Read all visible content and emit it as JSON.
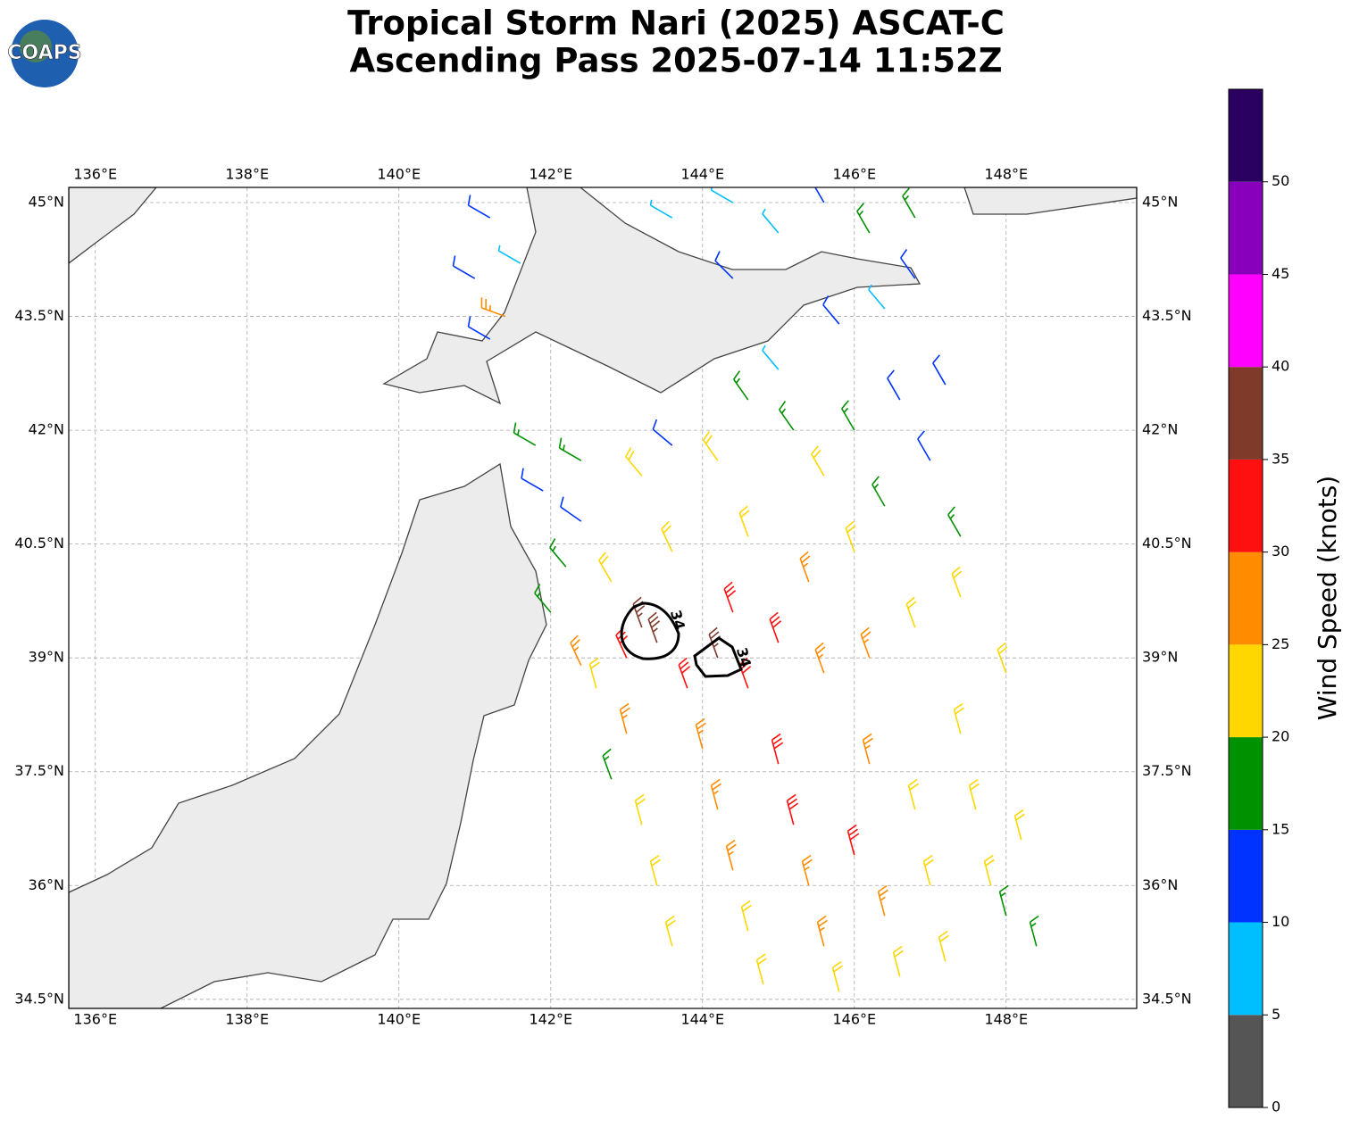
{
  "header": {
    "title": [
      "Tropical Storm Nari (2025) ASCAT-C",
      "Ascending Pass 2025-07-14 11:52Z"
    ]
  },
  "logo": "COAPS",
  "map": {
    "type": "wind-barbs",
    "xlim": [
      135.65,
      149.72
    ],
    "ylim": [
      34.38,
      45.2
    ],
    "xticks": [
      {
        "value": 136,
        "label": "136°E"
      },
      {
        "value": 138,
        "label": "138°E"
      },
      {
        "value": 140,
        "label": "140°E"
      },
      {
        "value": 142,
        "label": "142°E"
      },
      {
        "value": 144,
        "label": "144°E"
      },
      {
        "value": 146,
        "label": "146°E"
      },
      {
        "value": 148,
        "label": "148°E"
      }
    ],
    "yticks": [
      {
        "value": 34.5,
        "label": "34.5°N"
      },
      {
        "value": 36,
        "label": "36°N"
      },
      {
        "value": 37.5,
        "label": "37.5°N"
      },
      {
        "value": 39,
        "label": "39°N"
      },
      {
        "value": 40.5,
        "label": "40.5°N"
      },
      {
        "value": 42,
        "label": "42°N"
      },
      {
        "value": 43.5,
        "label": "43.5°N"
      },
      {
        "value": 45,
        "label": "45°N"
      }
    ],
    "grid": true,
    "contour_labels": [
      "34",
      "34"
    ],
    "barbs": [
      [
        142.6,
        38.6,
        24,
        345
      ],
      [
        143.0,
        38.0,
        27,
        345
      ],
      [
        142.8,
        37.4,
        19,
        340
      ],
      [
        143.2,
        36.8,
        22,
        345
      ],
      [
        143.4,
        36.0,
        24,
        345
      ],
      [
        143.6,
        35.2,
        22,
        345
      ],
      [
        144.0,
        37.8,
        28,
        345
      ],
      [
        144.2,
        37.0,
        27,
        345
      ],
      [
        144.4,
        36.2,
        26,
        345
      ],
      [
        144.6,
        35.4,
        24,
        345
      ],
      [
        144.8,
        34.7,
        23,
        345
      ],
      [
        145.0,
        37.6,
        32,
        345
      ],
      [
        145.2,
        36.8,
        31,
        345
      ],
      [
        145.4,
        36.0,
        27,
        345
      ],
      [
        145.6,
        35.2,
        26,
        345
      ],
      [
        145.8,
        34.6,
        24,
        345
      ],
      [
        146.0,
        36.4,
        31,
        345
      ],
      [
        146.2,
        37.6,
        27,
        345
      ],
      [
        146.4,
        35.6,
        26,
        345
      ],
      [
        146.6,
        34.8,
        23,
        345
      ],
      [
        146.8,
        37.0,
        24,
        345
      ],
      [
        147.0,
        36.0,
        23,
        345
      ],
      [
        147.2,
        35.0,
        21,
        345
      ],
      [
        147.4,
        38.0,
        23,
        345
      ],
      [
        147.6,
        37.0,
        22,
        345
      ],
      [
        147.8,
        36.0,
        21,
        345
      ],
      [
        148.0,
        35.6,
        17,
        345
      ],
      [
        148.4,
        35.2,
        16,
        345
      ],
      [
        148.2,
        36.6,
        22,
        345
      ],
      [
        143.4,
        39.2,
        36,
        340
      ],
      [
        143.2,
        39.4,
        37,
        340
      ],
      [
        143.0,
        39.0,
        32,
        335
      ],
      [
        143.8,
        38.6,
        31,
        340
      ],
      [
        144.2,
        39.0,
        36,
        340
      ],
      [
        144.6,
        38.6,
        32,
        340
      ],
      [
        144.4,
        39.6,
        31,
        340
      ],
      [
        145.0,
        39.2,
        31,
        340
      ],
      [
        145.6,
        38.8,
        27,
        340
      ],
      [
        146.2,
        39.0,
        26,
        340
      ],
      [
        146.8,
        39.4,
        24,
        340
      ],
      [
        147.4,
        39.8,
        22,
        340
      ],
      [
        148.0,
        38.8,
        22,
        340
      ],
      [
        145.4,
        40.0,
        26,
        340
      ],
      [
        146.0,
        40.4,
        24,
        340
      ],
      [
        144.6,
        40.6,
        24,
        340
      ],
      [
        143.6,
        40.4,
        24,
        335
      ],
      [
        142.8,
        40.0,
        22,
        330
      ],
      [
        142.2,
        40.2,
        17,
        320
      ],
      [
        142.0,
        39.6,
        17,
        320
      ],
      [
        142.4,
        38.9,
        26,
        335
      ],
      [
        141.8,
        41.8,
        18,
        300
      ],
      [
        142.4,
        41.6,
        17,
        300
      ],
      [
        141.9,
        41.2,
        12,
        300
      ],
      [
        142.4,
        40.8,
        13,
        305
      ],
      [
        143.2,
        41.4,
        24,
        320
      ],
      [
        143.6,
        41.8,
        14,
        310
      ],
      [
        144.2,
        41.6,
        22,
        325
      ],
      [
        144.6,
        42.4,
        18,
        325
      ],
      [
        145.2,
        42.0,
        18,
        325
      ],
      [
        145.6,
        41.4,
        21,
        330
      ],
      [
        146.0,
        42.0,
        16,
        330
      ],
      [
        146.4,
        41.0,
        17,
        330
      ],
      [
        146.6,
        42.4,
        14,
        330
      ],
      [
        147.0,
        41.6,
        13,
        330
      ],
      [
        147.4,
        40.6,
        17,
        330
      ],
      [
        147.2,
        42.6,
        12,
        330
      ],
      [
        145.0,
        42.8,
        8,
        320
      ],
      [
        145.8,
        43.4,
        12,
        320
      ],
      [
        146.4,
        43.6,
        8,
        320
      ],
      [
        146.8,
        44.0,
        12,
        325
      ],
      [
        146.2,
        44.6,
        16,
        330
      ],
      [
        146.8,
        44.8,
        17,
        330
      ],
      [
        145.6,
        45.0,
        14,
        330
      ],
      [
        145.0,
        44.6,
        9,
        320
      ],
      [
        144.4,
        44.0,
        12,
        315
      ],
      [
        143.6,
        44.8,
        8,
        300
      ],
      [
        144.4,
        45.0,
        7,
        300
      ],
      [
        141.2,
        44.8,
        13,
        300
      ],
      [
        141.6,
        44.2,
        8,
        300
      ],
      [
        141.0,
        44.0,
        12,
        300
      ],
      [
        141.2,
        43.2,
        11,
        300
      ],
      [
        141.4,
        43.5,
        27,
        290
      ]
    ]
  },
  "colorbar": {
    "label": "Wind Speed (knots)",
    "lim": [
      0,
      55
    ],
    "ticks": [
      0,
      5,
      10,
      15,
      20,
      25,
      30,
      35,
      40,
      45,
      50
    ],
    "colors": [
      "#555555",
      "#00bfff",
      "#0033ff",
      "#009100",
      "#ffd700",
      "#ff8c00",
      "#ff1010",
      "#7f3a2a",
      "#ff00ff",
      "#8800bb",
      "#2a0060"
    ]
  }
}
